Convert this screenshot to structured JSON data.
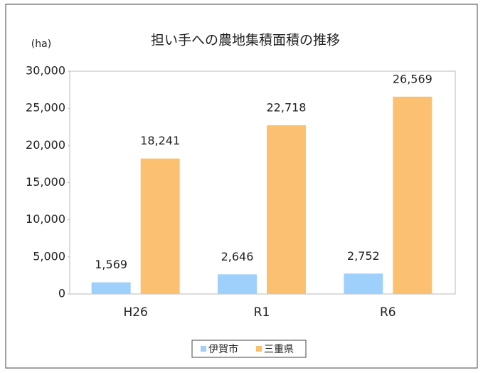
{
  "chart_data": {
    "type": "bar",
    "title": "担い手への農地集積面積の推移",
    "y_label": "(ha)",
    "categories": [
      "H26",
      "R1",
      "R6"
    ],
    "series": [
      {
        "name": "伊賀市",
        "color": "#9fd0fb",
        "values": [
          1569,
          2646,
          2752
        ],
        "value_labels": [
          "1,569",
          "2,646",
          "2,752"
        ]
      },
      {
        "name": "三重県",
        "color": "#fbc171",
        "values": [
          18241,
          22718,
          26569
        ],
        "value_labels": [
          "18,241",
          "22,718",
          "26,569"
        ]
      }
    ],
    "ylim": [
      0,
      30000
    ],
    "yticks": [
      0,
      {
        "value": 5000,
        "label": "5,000"
      },
      {
        "value": 10000,
        "label": "10,000"
      },
      {
        "value": 15000,
        "label": "15,000"
      },
      {
        "value": 20000,
        "label": "20,000"
      },
      {
        "value": 25000,
        "label": "25,000"
      },
      {
        "value": 30000,
        "label": "30,000"
      }
    ],
    "legend": "bottom"
  }
}
